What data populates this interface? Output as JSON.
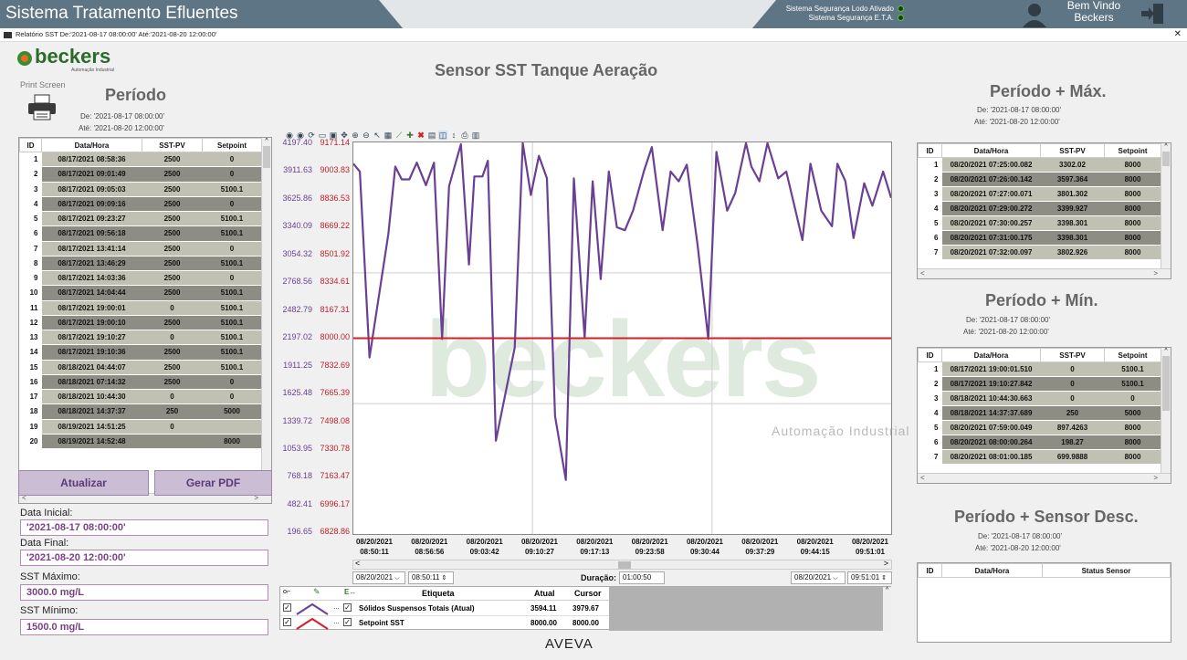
{
  "app": {
    "title": "Sistema Tratamento Efluentes",
    "security": [
      "Sistema Segurança Lodo Ativado",
      "Sistema Segurança E.T.A."
    ],
    "welcome": [
      "Bem Vindo",
      "Beckers"
    ]
  },
  "window": {
    "title": "Relatório SST De:'2021-08-17 08:00:00' Até:'2021-08-20 12:00:00'",
    "close": "✕"
  },
  "logo": {
    "name": "beckers",
    "tagline": "Automação Industrial"
  },
  "left": {
    "print_label": "Print Screen",
    "period_title": "Período",
    "de": "De:  '2021-08-17 08:00:00'",
    "ate": "Até:  '2021-08-20 12:00:00'",
    "columns": [
      "ID",
      "Data/Hora",
      "SST-PV",
      "Setpoint"
    ],
    "rows": [
      [
        "1",
        "08/17/2021 08:58:36",
        "2500",
        "0"
      ],
      [
        "2",
        "08/17/2021 09:01:49",
        "2500",
        "0"
      ],
      [
        "3",
        "08/17/2021 09:05:03",
        "2500",
        "5100.1"
      ],
      [
        "4",
        "08/17/2021 09:09:16",
        "2500",
        "0"
      ],
      [
        "5",
        "08/17/2021 09:23:27",
        "2500",
        "5100.1"
      ],
      [
        "6",
        "08/17/2021 09:56:18",
        "2500",
        "5100.1"
      ],
      [
        "7",
        "08/17/2021 13:41:14",
        "2500",
        "0"
      ],
      [
        "8",
        "08/17/2021 13:46:29",
        "2500",
        "5100.1"
      ],
      [
        "9",
        "08/17/2021 14:03:36",
        "2500",
        "0"
      ],
      [
        "10",
        "08/17/2021 14:04:44",
        "2500",
        "5100.1"
      ],
      [
        "11",
        "08/17/2021 19:00:01",
        "0",
        "5100.1"
      ],
      [
        "12",
        "08/17/2021 19:00:10",
        "2500",
        "5100.1"
      ],
      [
        "13",
        "08/17/2021 19:10:27",
        "0",
        "5100.1"
      ],
      [
        "14",
        "08/17/2021 19:10:36",
        "2500",
        "5100.1"
      ],
      [
        "15",
        "08/18/2021 04:44:07",
        "2500",
        "5100.1"
      ],
      [
        "16",
        "08/18/2021 07:14:32",
        "2500",
        "0"
      ],
      [
        "17",
        "08/18/2021 10:44:30",
        "0",
        "0"
      ],
      [
        "18",
        "08/18/2021 14:37:37",
        "250",
        "5000"
      ],
      [
        "19",
        "08/19/2021 14:51:25",
        "0",
        ""
      ],
      [
        "20",
        "08/19/2021 14:52:48",
        "",
        "8000"
      ]
    ],
    "btn_update": "Atualizar",
    "btn_pdf": "Gerar PDF",
    "data_inicial_label": "Data Inicial:",
    "data_inicial": "'2021-08-17 08:00:00'",
    "data_final_label": "Data Final:",
    "data_final": "'2021-08-20 12:00:00'",
    "sst_max_label": "SST Máximo:",
    "sst_max": "3000.0    mg/L",
    "sst_min_label": "SST Mínimo:",
    "sst_min": "1500.0    mg/L"
  },
  "chart_title": "Sensor SST Tanque Aeração",
  "watermark": {
    "text": "beckers",
    "sub": "Automação Industrial"
  },
  "chart_data": {
    "type": "line",
    "y_left_ticks": [
      "4197.40",
      "3911.63",
      "3625.86",
      "3340.09",
      "3054.32",
      "2768.56",
      "2482.79",
      "2197.02",
      "1911.25",
      "1625.48",
      "1339.72",
      "1053.95",
      "768.18",
      "482.41",
      "196.65"
    ],
    "y_right_ticks": [
      "9171.14",
      "9003.83",
      "8836.53",
      "8669.22",
      "8501.92",
      "8334.61",
      "8167.31",
      "8000.00",
      "7832.69",
      "7665.39",
      "7498.08",
      "7330.78",
      "7163.47",
      "6996.17",
      "6828.86"
    ],
    "ylim_left": [
      196.65,
      4197.4
    ],
    "ylim_right": [
      6828.86,
      9171.14
    ],
    "x_ticks": [
      [
        "08/20/2021",
        "08:50:11"
      ],
      [
        "08/20/2021",
        "08:56:56"
      ],
      [
        "08/20/2021",
        "09:03:42"
      ],
      [
        "08/20/2021",
        "09:10:27"
      ],
      [
        "08/20/2021",
        "09:17:13"
      ],
      [
        "08/20/2021",
        "09:23:58"
      ],
      [
        "08/20/2021",
        "09:30:44"
      ],
      [
        "08/20/2021",
        "09:37:29"
      ],
      [
        "08/20/2021",
        "09:44:15"
      ],
      [
        "08/20/2021",
        "09:51:01"
      ]
    ],
    "series": [
      {
        "name": "Sólidos Suspensos Totais (Atual)",
        "color": "#6a3f94",
        "axis": "left",
        "x": [
          0,
          0.012,
          0.03,
          0.065,
          0.078,
          0.09,
          0.104,
          0.118,
          0.135,
          0.15,
          0.165,
          0.178,
          0.2,
          0.215,
          0.225,
          0.24,
          0.25,
          0.265,
          0.3,
          0.315,
          0.33,
          0.345,
          0.36,
          0.375,
          0.395,
          0.41,
          0.43,
          0.445,
          0.46,
          0.475,
          0.49,
          0.505,
          0.52,
          0.54,
          0.555,
          0.575,
          0.59,
          0.605,
          0.62,
          0.64,
          0.66,
          0.675,
          0.695,
          0.71,
          0.73,
          0.74,
          0.755,
          0.77,
          0.79,
          0.805,
          0.82,
          0.835,
          0.85,
          0.87,
          0.89,
          0.9,
          0.915,
          0.93,
          0.95,
          0.965,
          0.985,
          1
        ],
        "y": [
          3980,
          3900,
          2000,
          3260,
          3950,
          3820,
          3820,
          3990,
          3760,
          3990,
          2190,
          3750,
          4180,
          2950,
          3850,
          3850,
          4010,
          1150,
          2100,
          4190,
          3660,
          4060,
          3830,
          1400,
          750,
          3830,
          2200,
          3800,
          2800,
          3900,
          3330,
          3300,
          3500,
          3900,
          4150,
          3300,
          3900,
          3800,
          3970,
          3150,
          2190,
          4100,
          3500,
          3680,
          4190,
          3950,
          3800,
          4190,
          3830,
          3900,
          3550,
          3200,
          3980,
          3500,
          3340,
          3980,
          3800,
          3220,
          3780,
          3550,
          3900,
          3630
        ]
      },
      {
        "name": "Setpoint SST",
        "color": "#d31f26",
        "axis": "right",
        "x": [
          0,
          1
        ],
        "y": [
          8000,
          8000
        ]
      }
    ]
  },
  "nav": {
    "start_date": "08/20/2021",
    "start_time": "08:50:11",
    "duration_label": "Duração:",
    "duration": "01:00:50",
    "end_date": "08/20/2021",
    "end_time": "09:51:01"
  },
  "legend": {
    "columns": [
      "Etiqueta",
      "Atual",
      "Cursor"
    ],
    "rows": [
      {
        "label": "Sólidos Suspensos Totais (Atual)",
        "atual": "3594.11",
        "cursor": "3979.67"
      },
      {
        "label": "Setpoint SST",
        "atual": "8000.00",
        "cursor": "8000.00"
      }
    ]
  },
  "aveva": "AVEVA",
  "right_max": {
    "title": "Período + Máx.",
    "de": "De:  '2021-08-17 08:00:00'",
    "ate": "Até:  '2021-08-20 12:00:00'",
    "columns": [
      "ID",
      "Data/Hora",
      "SST-PV",
      "Setpoint"
    ],
    "rows": [
      [
        "1",
        "08/20/2021 07:25:00.082",
        "3302.02",
        "8000"
      ],
      [
        "2",
        "08/20/2021 07:26:00.142",
        "3597.364",
        "8000"
      ],
      [
        "3",
        "08/20/2021 07:27:00.071",
        "3801.302",
        "8000"
      ],
      [
        "4",
        "08/20/2021 07:29:00.272",
        "3399.927",
        "8000"
      ],
      [
        "5",
        "08/20/2021 07:30:00.257",
        "3398.301",
        "8000"
      ],
      [
        "6",
        "08/20/2021 07:31:00.175",
        "3398.301",
        "8000"
      ],
      [
        "7",
        "08/20/2021 07:32:00.097",
        "3802.926",
        "8000"
      ]
    ]
  },
  "right_min": {
    "title": "Período + Mín.",
    "de": "De:  '2021-08-17 08:00:00'",
    "ate": "Até:  '2021-08-20 12:00:00'",
    "columns": [
      "ID",
      "Data/Hora",
      "SST-PV",
      "Setpoint"
    ],
    "rows": [
      [
        "1",
        "08/17/2021 19:00:01.510",
        "0",
        "5100.1"
      ],
      [
        "2",
        "08/17/2021 19:10:27.842",
        "0",
        "5100.1"
      ],
      [
        "3",
        "08/18/2021 10:44:30.663",
        "0",
        "0"
      ],
      [
        "4",
        "08/18/2021 14:37:37.689",
        "250",
        "5000"
      ],
      [
        "5",
        "08/20/2021 07:59:00.049",
        "897.4263",
        "8000"
      ],
      [
        "6",
        "08/20/2021 08:00:00.264",
        "198.27",
        "8000"
      ],
      [
        "7",
        "08/20/2021 08:01:00.185",
        "699.9888",
        "8000"
      ]
    ]
  },
  "right_desc": {
    "title": "Período + Sensor Desc.",
    "de": "De:  '2021-08-17 08:00:00'",
    "ate": "Até:  '2021-08-20 12:00:00'",
    "columns": [
      "ID",
      "Data/Hora",
      "Status Sensor"
    ]
  },
  "colors": {
    "purple": "#6a3f94",
    "red": "#d31f26",
    "topbar": "#5d7584",
    "row_light": "#c1c1b3",
    "row_dark": "#8d8d84"
  }
}
